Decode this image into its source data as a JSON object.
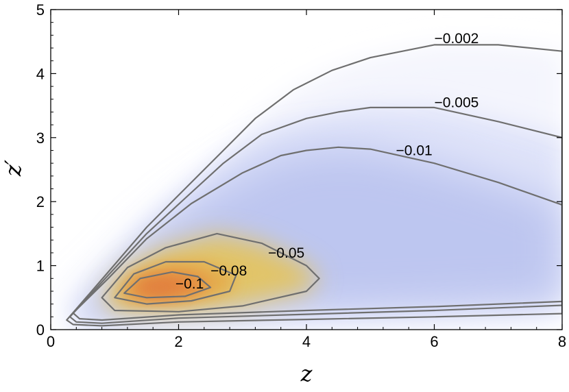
{
  "chart_data": {
    "type": "contour",
    "title": "",
    "xlabel": "z",
    "ylabel": "z′",
    "xlim": [
      0,
      8
    ],
    "ylim": [
      0,
      5
    ],
    "x_ticks": [
      "0",
      "2",
      "4",
      "6",
      "8"
    ],
    "y_ticks": [
      "0",
      "1",
      "2",
      "3",
      "4",
      "5"
    ],
    "colors": {
      "background": "#ffffff",
      "low_magnitude": "#f4f5fd",
      "mid_magnitude": "#bcc4ef",
      "high_magnitude": "#e6c45a",
      "peak_magnitude": "#e5833f",
      "contour_line": "#6f6f6f"
    },
    "peak": {
      "z": 1.7,
      "z_prime": 0.65
    },
    "contours": [
      {
        "level": "−0.002",
        "label_at": [
          6.0,
          4.55
        ],
        "points": [
          [
            0.25,
            0.15
          ],
          [
            0.9,
            0.9
          ],
          [
            1.5,
            1.6
          ],
          [
            2.1,
            2.2
          ],
          [
            2.7,
            2.8
          ],
          [
            3.2,
            3.3
          ],
          [
            3.8,
            3.75
          ],
          [
            4.4,
            4.05
          ],
          [
            5,
            4.25
          ],
          [
            6,
            4.45
          ],
          [
            7,
            4.45
          ],
          [
            8,
            4.35
          ],
          [
            8,
            0.25
          ],
          [
            6,
            0.2
          ],
          [
            4,
            0.16
          ],
          [
            2,
            0.12
          ],
          [
            0.8,
            0.06
          ],
          [
            0.35,
            0.08
          ],
          [
            0.25,
            0.15
          ]
        ]
      },
      {
        "level": "−0.005",
        "label_at": [
          6.0,
          3.55
        ],
        "points": [
          [
            0.3,
            0.2
          ],
          [
            0.9,
            0.85
          ],
          [
            1.5,
            1.5
          ],
          [
            2.1,
            2.05
          ],
          [
            2.7,
            2.6
          ],
          [
            3.3,
            3.05
          ],
          [
            4,
            3.3
          ],
          [
            4.5,
            3.4
          ],
          [
            5,
            3.47
          ],
          [
            6,
            3.47
          ],
          [
            7,
            3.25
          ],
          [
            8,
            3.0
          ],
          [
            8,
            0.38
          ],
          [
            6,
            0.3
          ],
          [
            4,
            0.24
          ],
          [
            2,
            0.18
          ],
          [
            0.8,
            0.1
          ],
          [
            0.4,
            0.12
          ],
          [
            0.3,
            0.2
          ]
        ]
      },
      {
        "level": "−0.01",
        "label_at": [
          5.4,
          2.8
        ],
        "points": [
          [
            0.35,
            0.26
          ],
          [
            0.9,
            0.8
          ],
          [
            1.5,
            1.42
          ],
          [
            2.2,
            1.97
          ],
          [
            3,
            2.45
          ],
          [
            3.6,
            2.72
          ],
          [
            4,
            2.8
          ],
          [
            4.5,
            2.85
          ],
          [
            5,
            2.82
          ],
          [
            6,
            2.6
          ],
          [
            7,
            2.3
          ],
          [
            8,
            1.95
          ],
          [
            8,
            0.44
          ],
          [
            6,
            0.36
          ],
          [
            4,
            0.3
          ],
          [
            2,
            0.23
          ],
          [
            0.8,
            0.15
          ],
          [
            0.45,
            0.17
          ],
          [
            0.35,
            0.26
          ]
        ]
      },
      {
        "level": "−0.05",
        "label_at": [
          3.4,
          1.2
        ],
        "points": [
          [
            0.8,
            0.5
          ],
          [
            1.2,
            0.97
          ],
          [
            1.8,
            1.28
          ],
          [
            2.6,
            1.5
          ],
          [
            3.3,
            1.35
          ],
          [
            4,
            1.0
          ],
          [
            4.2,
            0.8
          ],
          [
            4.0,
            0.6
          ],
          [
            3,
            0.37
          ],
          [
            2,
            0.28
          ],
          [
            1,
            0.3
          ],
          [
            0.8,
            0.5
          ]
        ]
      },
      {
        "level": "−0.08",
        "label_at": [
          2.5,
          0.92
        ],
        "points": [
          [
            1.0,
            0.5
          ],
          [
            1.3,
            0.87
          ],
          [
            1.8,
            1.06
          ],
          [
            2.4,
            1.06
          ],
          [
            2.9,
            0.85
          ],
          [
            2.8,
            0.6
          ],
          [
            2.2,
            0.45
          ],
          [
            1.5,
            0.4
          ],
          [
            1.0,
            0.5
          ]
        ]
      },
      {
        "level": "−0.1",
        "label_at": [
          1.95,
          0.72
        ],
        "points": [
          [
            1.15,
            0.57
          ],
          [
            1.4,
            0.8
          ],
          [
            1.9,
            0.9
          ],
          [
            2.3,
            0.83
          ],
          [
            2.5,
            0.66
          ],
          [
            2.1,
            0.52
          ],
          [
            1.5,
            0.5
          ],
          [
            1.15,
            0.57
          ]
        ]
      }
    ]
  }
}
